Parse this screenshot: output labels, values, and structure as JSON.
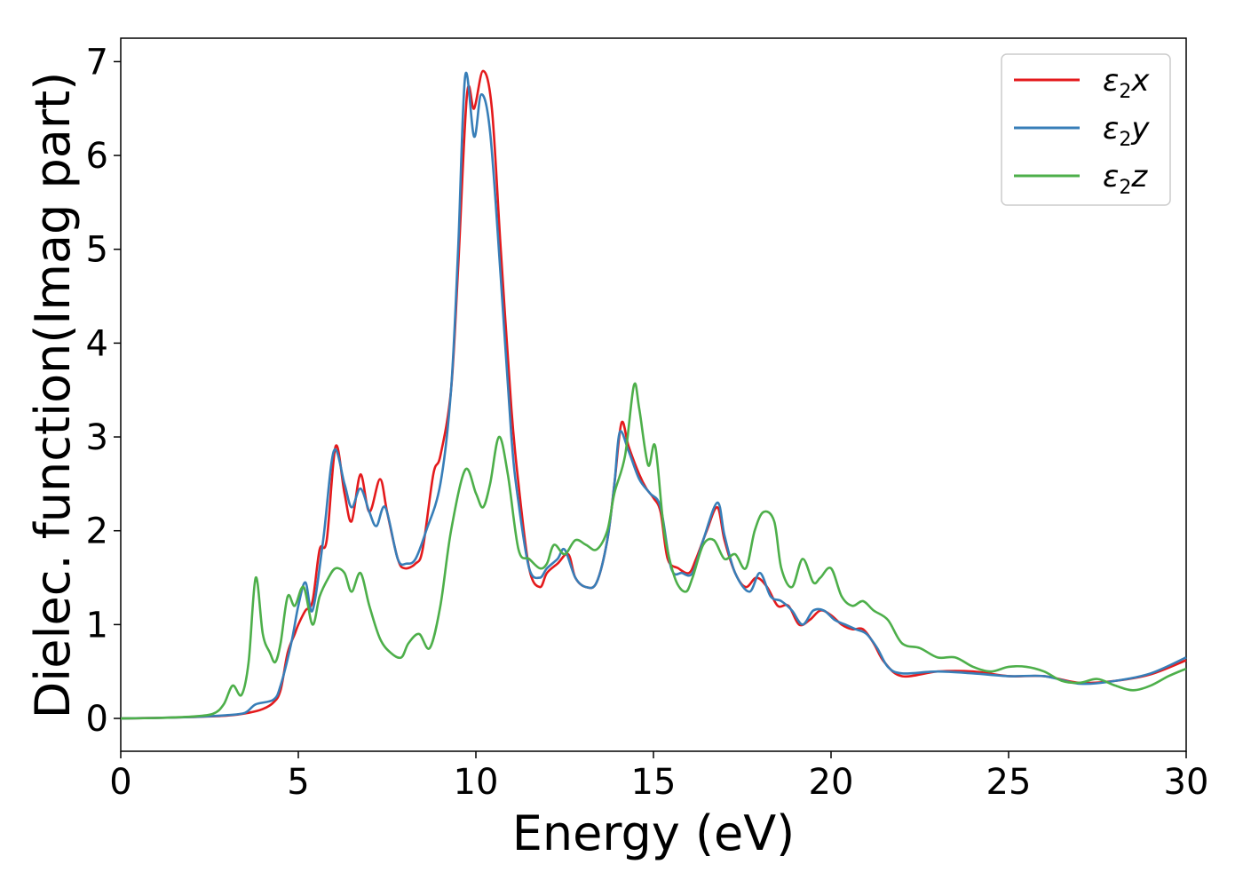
{
  "chart_data": {
    "type": "line",
    "xlabel": "Energy (eV)",
    "ylabel": "Dielec. function(Imag part)",
    "xlim": [
      0,
      30
    ],
    "ylim": [
      -0.35,
      7.25
    ],
    "xticks": [
      0,
      5,
      10,
      15,
      20,
      25,
      30
    ],
    "yticks": [
      0,
      1,
      2,
      3,
      4,
      5,
      6,
      7
    ],
    "grid": false,
    "legend_position": "top-right",
    "series": [
      {
        "name": "ε2x",
        "legend": {
          "base": "ε",
          "sub": "2",
          "var": "x"
        },
        "color": "#e41a1c",
        "points": [
          [
            0,
            0
          ],
          [
            1,
            0.005
          ],
          [
            2,
            0.015
          ],
          [
            3,
            0.03
          ],
          [
            3.6,
            0.06
          ],
          [
            4.0,
            0.1
          ],
          [
            4.3,
            0.17
          ],
          [
            4.5,
            0.3
          ],
          [
            4.7,
            0.7
          ],
          [
            4.9,
            0.9
          ],
          [
            5.0,
            1.0
          ],
          [
            5.2,
            1.15
          ],
          [
            5.4,
            1.25
          ],
          [
            5.6,
            1.8
          ],
          [
            5.8,
            1.9
          ],
          [
            6.05,
            2.9
          ],
          [
            6.3,
            2.4
          ],
          [
            6.5,
            2.1
          ],
          [
            6.75,
            2.6
          ],
          [
            7.0,
            2.2
          ],
          [
            7.3,
            2.55
          ],
          [
            7.5,
            2.2
          ],
          [
            7.8,
            1.7
          ],
          [
            8.0,
            1.6
          ],
          [
            8.3,
            1.65
          ],
          [
            8.5,
            1.8
          ],
          [
            8.8,
            2.6
          ],
          [
            9.0,
            2.8
          ],
          [
            9.3,
            3.5
          ],
          [
            9.5,
            4.8
          ],
          [
            9.75,
            6.65
          ],
          [
            9.95,
            6.5
          ],
          [
            10.2,
            6.9
          ],
          [
            10.45,
            6.5
          ],
          [
            10.7,
            5.0
          ],
          [
            11.0,
            3.3
          ],
          [
            11.2,
            2.5
          ],
          [
            11.5,
            1.6
          ],
          [
            11.8,
            1.4
          ],
          [
            12.0,
            1.55
          ],
          [
            12.3,
            1.65
          ],
          [
            12.6,
            1.75
          ],
          [
            12.8,
            1.5
          ],
          [
            13.1,
            1.4
          ],
          [
            13.4,
            1.45
          ],
          [
            13.7,
            1.9
          ],
          [
            13.9,
            2.5
          ],
          [
            14.1,
            3.15
          ],
          [
            14.3,
            2.9
          ],
          [
            14.6,
            2.6
          ],
          [
            14.8,
            2.45
          ],
          [
            15.0,
            2.35
          ],
          [
            15.2,
            2.2
          ],
          [
            15.4,
            1.7
          ],
          [
            15.7,
            1.6
          ],
          [
            16.0,
            1.55
          ],
          [
            16.2,
            1.7
          ],
          [
            16.5,
            2.0
          ],
          [
            16.8,
            2.25
          ],
          [
            17.0,
            1.9
          ],
          [
            17.3,
            1.55
          ],
          [
            17.6,
            1.4
          ],
          [
            17.9,
            1.5
          ],
          [
            18.2,
            1.4
          ],
          [
            18.5,
            1.2
          ],
          [
            18.8,
            1.2
          ],
          [
            19.1,
            1.0
          ],
          [
            19.4,
            1.05
          ],
          [
            19.7,
            1.15
          ],
          [
            20.0,
            1.1
          ],
          [
            20.3,
            1.0
          ],
          [
            20.6,
            0.95
          ],
          [
            20.9,
            0.95
          ],
          [
            21.2,
            0.8
          ],
          [
            21.5,
            0.6
          ],
          [
            22.0,
            0.45
          ],
          [
            23.0,
            0.5
          ],
          [
            24.0,
            0.5
          ],
          [
            25.0,
            0.45
          ],
          [
            26.0,
            0.45
          ],
          [
            27.0,
            0.38
          ],
          [
            28.0,
            0.4
          ],
          [
            29.0,
            0.47
          ],
          [
            30.0,
            0.62
          ]
        ]
      },
      {
        "name": "ε2y",
        "legend": {
          "base": "ε",
          "sub": "2",
          "var": "y"
        },
        "color": "#377eb8",
        "points": [
          [
            0,
            0
          ],
          [
            1,
            0.005
          ],
          [
            2,
            0.015
          ],
          [
            3,
            0.035
          ],
          [
            3.5,
            0.06
          ],
          [
            3.8,
            0.15
          ],
          [
            4.3,
            0.2
          ],
          [
            4.5,
            0.35
          ],
          [
            4.8,
            0.8
          ],
          [
            5.0,
            1.2
          ],
          [
            5.2,
            1.45
          ],
          [
            5.4,
            1.15
          ],
          [
            5.7,
            1.9
          ],
          [
            6.0,
            2.85
          ],
          [
            6.3,
            2.5
          ],
          [
            6.5,
            2.25
          ],
          [
            6.75,
            2.45
          ],
          [
            7.0,
            2.2
          ],
          [
            7.2,
            2.05
          ],
          [
            7.45,
            2.25
          ],
          [
            7.8,
            1.7
          ],
          [
            8.05,
            1.65
          ],
          [
            8.3,
            1.7
          ],
          [
            8.6,
            2.0
          ],
          [
            9.0,
            2.5
          ],
          [
            9.3,
            3.5
          ],
          [
            9.5,
            5.0
          ],
          [
            9.7,
            6.85
          ],
          [
            9.95,
            6.2
          ],
          [
            10.15,
            6.65
          ],
          [
            10.4,
            6.25
          ],
          [
            10.7,
            4.7
          ],
          [
            11.0,
            3.0
          ],
          [
            11.2,
            2.3
          ],
          [
            11.5,
            1.6
          ],
          [
            11.8,
            1.5
          ],
          [
            12.0,
            1.6
          ],
          [
            12.3,
            1.7
          ],
          [
            12.5,
            1.8
          ],
          [
            12.8,
            1.5
          ],
          [
            13.1,
            1.4
          ],
          [
            13.4,
            1.45
          ],
          [
            13.7,
            1.9
          ],
          [
            13.9,
            2.5
          ],
          [
            14.05,
            3.05
          ],
          [
            14.3,
            2.85
          ],
          [
            14.6,
            2.55
          ],
          [
            14.9,
            2.4
          ],
          [
            15.2,
            2.25
          ],
          [
            15.5,
            1.6
          ],
          [
            15.8,
            1.55
          ],
          [
            16.1,
            1.55
          ],
          [
            16.4,
            1.9
          ],
          [
            16.8,
            2.3
          ],
          [
            17.0,
            1.95
          ],
          [
            17.3,
            1.55
          ],
          [
            17.7,
            1.35
          ],
          [
            18.0,
            1.55
          ],
          [
            18.3,
            1.3
          ],
          [
            18.6,
            1.25
          ],
          [
            18.9,
            1.15
          ],
          [
            19.2,
            1.0
          ],
          [
            19.5,
            1.15
          ],
          [
            19.8,
            1.15
          ],
          [
            20.1,
            1.05
          ],
          [
            20.4,
            1.0
          ],
          [
            20.7,
            0.95
          ],
          [
            21.0,
            0.9
          ],
          [
            21.3,
            0.75
          ],
          [
            21.6,
            0.55
          ],
          [
            22.0,
            0.48
          ],
          [
            23.0,
            0.5
          ],
          [
            24.0,
            0.48
          ],
          [
            25.0,
            0.45
          ],
          [
            26.0,
            0.45
          ],
          [
            27.0,
            0.37
          ],
          [
            28.0,
            0.4
          ],
          [
            29.0,
            0.48
          ],
          [
            30.0,
            0.65
          ]
        ]
      },
      {
        "name": "ε2z",
        "legend": {
          "base": "ε",
          "sub": "2",
          "var": "z"
        },
        "color": "#4daf4a",
        "points": [
          [
            0,
            0
          ],
          [
            1,
            0.005
          ],
          [
            2,
            0.02
          ],
          [
            2.6,
            0.05
          ],
          [
            2.9,
            0.15
          ],
          [
            3.15,
            0.35
          ],
          [
            3.4,
            0.25
          ],
          [
            3.6,
            0.6
          ],
          [
            3.8,
            1.5
          ],
          [
            4.0,
            0.9
          ],
          [
            4.2,
            0.7
          ],
          [
            4.35,
            0.6
          ],
          [
            4.5,
            0.8
          ],
          [
            4.7,
            1.3
          ],
          [
            4.9,
            1.2
          ],
          [
            5.15,
            1.4
          ],
          [
            5.4,
            1.0
          ],
          [
            5.6,
            1.3
          ],
          [
            5.85,
            1.5
          ],
          [
            6.05,
            1.6
          ],
          [
            6.3,
            1.55
          ],
          [
            6.5,
            1.35
          ],
          [
            6.75,
            1.55
          ],
          [
            7.0,
            1.2
          ],
          [
            7.3,
            0.85
          ],
          [
            7.6,
            0.7
          ],
          [
            7.9,
            0.65
          ],
          [
            8.1,
            0.8
          ],
          [
            8.4,
            0.9
          ],
          [
            8.7,
            0.75
          ],
          [
            9.0,
            1.2
          ],
          [
            9.3,
            2.0
          ],
          [
            9.7,
            2.65
          ],
          [
            10.0,
            2.4
          ],
          [
            10.2,
            2.25
          ],
          [
            10.4,
            2.5
          ],
          [
            10.65,
            3.0
          ],
          [
            10.9,
            2.6
          ],
          [
            11.2,
            1.8
          ],
          [
            11.5,
            1.7
          ],
          [
            11.8,
            1.6
          ],
          [
            12.0,
            1.65
          ],
          [
            12.2,
            1.85
          ],
          [
            12.5,
            1.75
          ],
          [
            12.8,
            1.9
          ],
          [
            13.1,
            1.85
          ],
          [
            13.4,
            1.8
          ],
          [
            13.7,
            2.0
          ],
          [
            13.9,
            2.4
          ],
          [
            14.2,
            2.8
          ],
          [
            14.45,
            3.55
          ],
          [
            14.6,
            3.3
          ],
          [
            14.85,
            2.7
          ],
          [
            15.05,
            2.9
          ],
          [
            15.3,
            2.0
          ],
          [
            15.6,
            1.5
          ],
          [
            15.9,
            1.35
          ],
          [
            16.1,
            1.5
          ],
          [
            16.4,
            1.85
          ],
          [
            16.7,
            1.9
          ],
          [
            17.0,
            1.7
          ],
          [
            17.3,
            1.75
          ],
          [
            17.6,
            1.6
          ],
          [
            17.85,
            2.0
          ],
          [
            18.1,
            2.2
          ],
          [
            18.4,
            2.1
          ],
          [
            18.6,
            1.6
          ],
          [
            18.9,
            1.4
          ],
          [
            19.2,
            1.7
          ],
          [
            19.5,
            1.45
          ],
          [
            19.7,
            1.5
          ],
          [
            20.0,
            1.6
          ],
          [
            20.3,
            1.3
          ],
          [
            20.6,
            1.2
          ],
          [
            20.9,
            1.25
          ],
          [
            21.2,
            1.15
          ],
          [
            21.6,
            1.05
          ],
          [
            22.0,
            0.8
          ],
          [
            22.5,
            0.75
          ],
          [
            23.0,
            0.65
          ],
          [
            23.5,
            0.65
          ],
          [
            24.0,
            0.55
          ],
          [
            24.5,
            0.5
          ],
          [
            25.0,
            0.55
          ],
          [
            25.5,
            0.55
          ],
          [
            26.0,
            0.5
          ],
          [
            26.5,
            0.4
          ],
          [
            27.0,
            0.38
          ],
          [
            27.5,
            0.42
          ],
          [
            28.0,
            0.35
          ],
          [
            28.5,
            0.3
          ],
          [
            29.0,
            0.35
          ],
          [
            29.5,
            0.45
          ],
          [
            30.0,
            0.53
          ]
        ]
      }
    ]
  }
}
